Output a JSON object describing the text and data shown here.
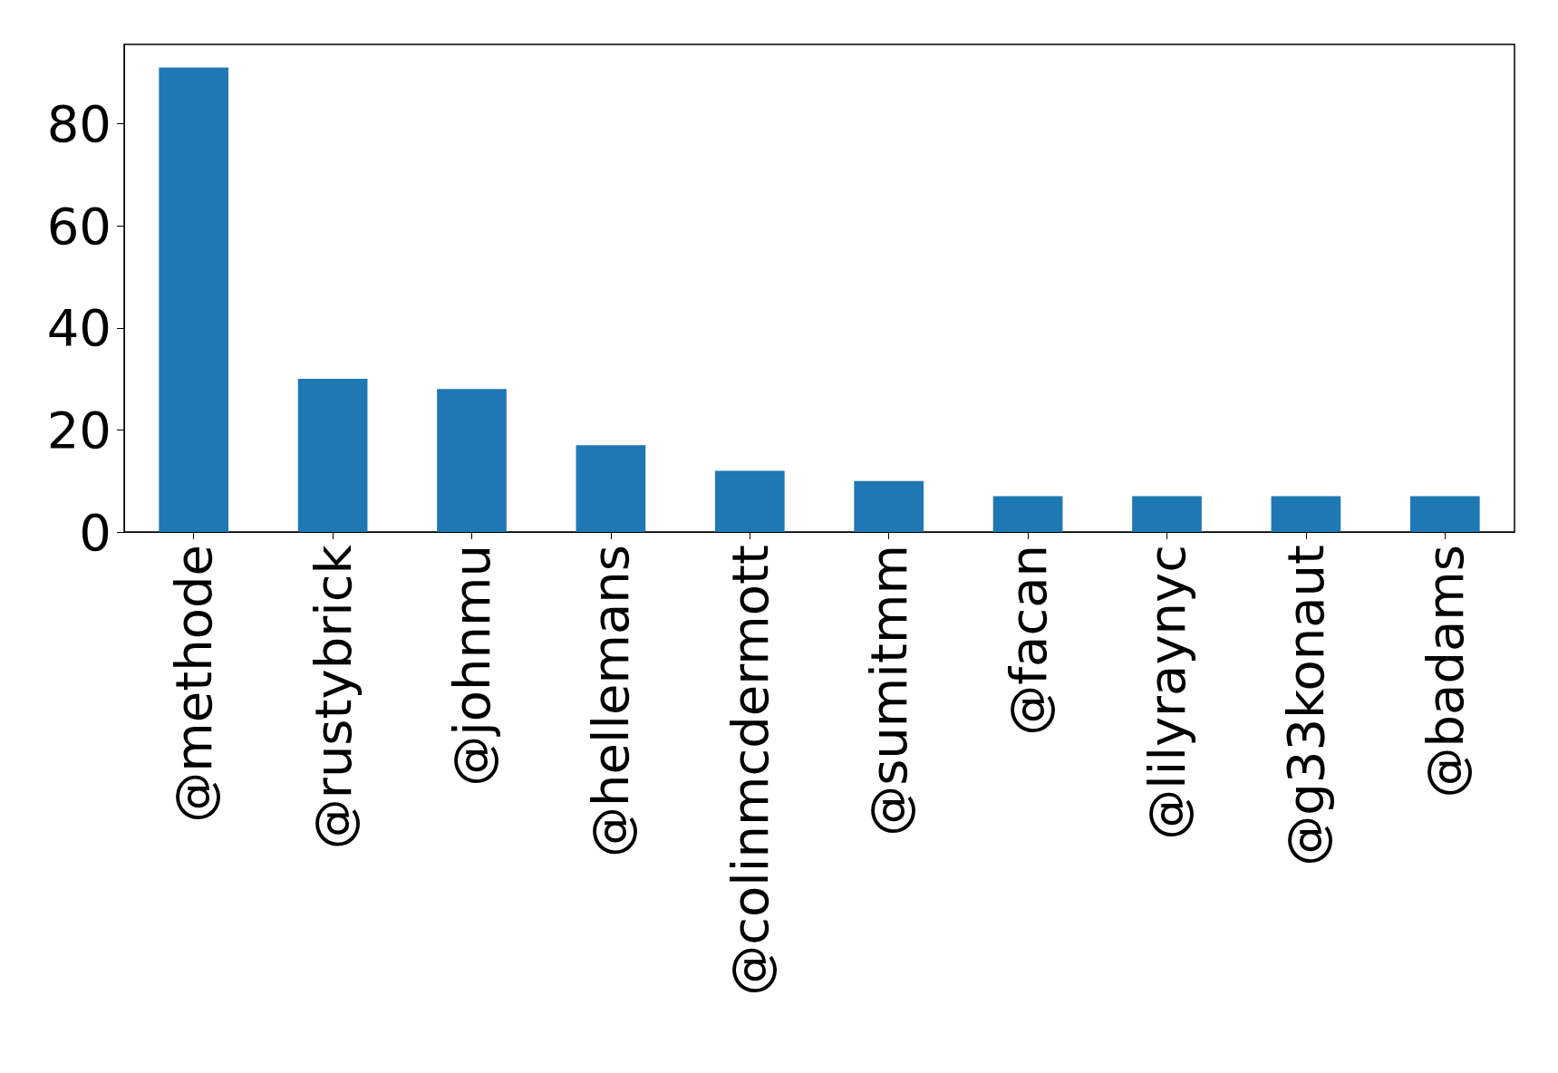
{
  "chart_data": {
    "type": "bar",
    "categories": [
      "@methode",
      "@rustybrick",
      "@johnmu",
      "@hellemans",
      "@colinmcdermott",
      "@sumitmm",
      "@facan",
      "@lilyraynyc",
      "@g33konaut",
      "@badams"
    ],
    "values": [
      91,
      30,
      28,
      17,
      12,
      10,
      7,
      7,
      7,
      7
    ],
    "color": "#1f77b4",
    "ylim": [
      0,
      95.55
    ],
    "yticks": [
      0,
      20,
      40,
      60,
      80
    ],
    "grid": false
  }
}
